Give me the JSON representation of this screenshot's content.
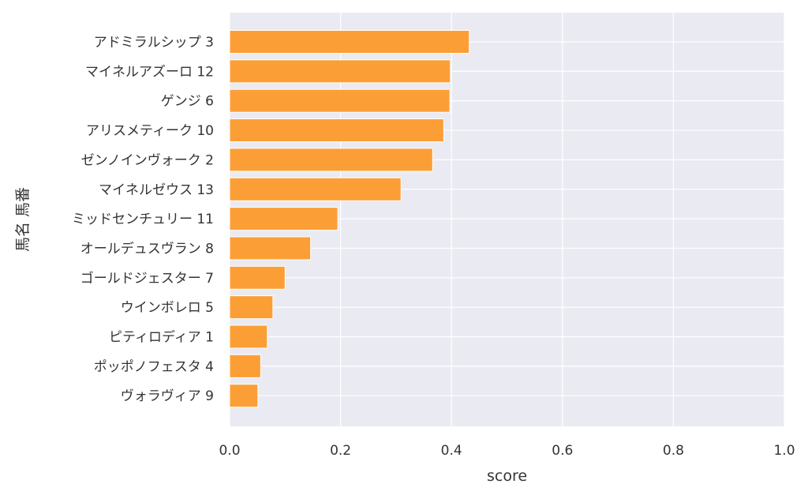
{
  "chart_data": {
    "type": "bar",
    "orientation": "horizontal",
    "title": "",
    "xlabel": "score",
    "ylabel": "馬名 馬番",
    "xlim": [
      0.0,
      1.0
    ],
    "xticks": [
      "0.0",
      "0.2",
      "0.4",
      "0.6",
      "0.8",
      "1.0"
    ],
    "grid": true,
    "categories": [
      "アドミラルシップ 3",
      "マイネルアズーロ 12",
      "ゲンジ 6",
      "アリスメティーク 10",
      "ゼンノインヴォーク 2",
      "マイネルゼウス 13",
      "ミッドセンチュリー 11",
      "オールデュスヴラン 8",
      "ゴールドジェスター 7",
      "ウインボレロ 5",
      "ピティロディア 1",
      "ポッポノフェスタ 4",
      "ヴォラヴィア 9"
    ],
    "values": [
      0.432,
      0.398,
      0.397,
      0.386,
      0.366,
      0.309,
      0.195,
      0.146,
      0.1,
      0.078,
      0.068,
      0.056,
      0.051
    ],
    "colors": {
      "bar": "#fd9a2b",
      "bar_edge": "#ffffff",
      "plot_background": "#eaeaf2",
      "grid": "#ffffff",
      "text": "#333333"
    }
  }
}
